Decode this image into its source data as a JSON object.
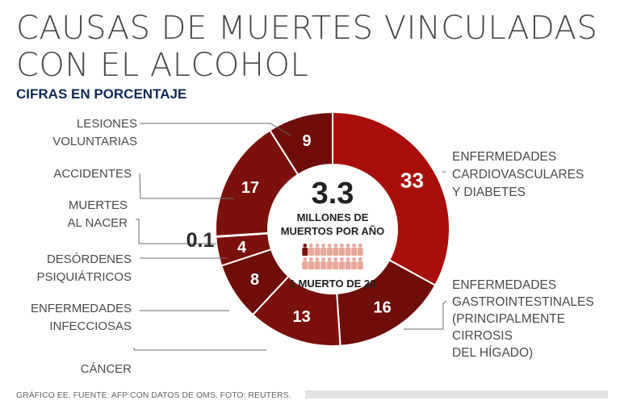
{
  "title": "CAUSAS DE MUERTES VINCULADAS CON EL ALCOHOL",
  "subtitle": "CIFRAS EN PORCENTAJE",
  "center": {
    "total": "3.3",
    "line1": "MILLONES DE",
    "line2": "MUERTOS POR AÑO",
    "ratio": "1 MUERTO DE 20"
  },
  "footer": "GRÁFICO EE. FUENTE: AFP CON DATOS DE OMS. FOTO: REUTERS.",
  "colors": {
    "cardio": "#a80f0a",
    "dark": "#6e0d0a",
    "mid": "#7c100c",
    "icon_dark": "#7a1410",
    "icon_light": "#e7a79a"
  },
  "chart_data": {
    "type": "pie",
    "title": "CAUSAS DE MUERTES VINCULADAS CON EL ALCOHOL",
    "subtitle": "CIFRAS EN PORCENTAJE",
    "slices": [
      {
        "label": "ENFERMEDADES CARDIOVASCULARES Y DIABETES",
        "label_lines": [
          "ENFERMEDADES",
          "CARDIOVASCULARES",
          "Y DIABETES"
        ],
        "value": 33,
        "display": "33"
      },
      {
        "label": "ENFERMEDADES GASTROINTESTINALES (PRINCIPALMENTE CIRROSIS DEL HÍGADO)",
        "label_lines": [
          "ENFERMEDADES",
          "GASTROINTESTINALES",
          "(PRINCIPALMENTE",
          "CIRROSIS",
          "DEL HÍGADO)"
        ],
        "value": 16,
        "display": "16"
      },
      {
        "label": "CÁNCER",
        "label_lines": [
          "CÁNCER"
        ],
        "value": 13,
        "display": "13"
      },
      {
        "label": "ENFERMEDADES INFECCIOSAS",
        "label_lines": [
          "ENFERMEDADES",
          "INFECCIOSAS"
        ],
        "value": 8,
        "display": "8"
      },
      {
        "label": "DESÓRDENES PSIQUIÁTRICOS",
        "label_lines": [
          "DESÓRDENES",
          "PSIQUIÁTRICOS"
        ],
        "value": 4,
        "display": "4"
      },
      {
        "label": "MUERTES AL NACER",
        "label_lines": [
          "MUERTES",
          "AL NACER"
        ],
        "value": 0.1,
        "display": "0.1"
      },
      {
        "label": "ACCIDENTES",
        "label_lines": [
          "ACCIDENTES"
        ],
        "value": 17,
        "display": "17"
      },
      {
        "label": "LESIONES VOLUNTARIAS",
        "label_lines": [
          "LESIONES",
          "VOLUNTARIAS"
        ],
        "value": 9,
        "display": "9"
      }
    ],
    "highlight_index": 0,
    "icon_row": {
      "dark": 1,
      "light": 19
    }
  }
}
